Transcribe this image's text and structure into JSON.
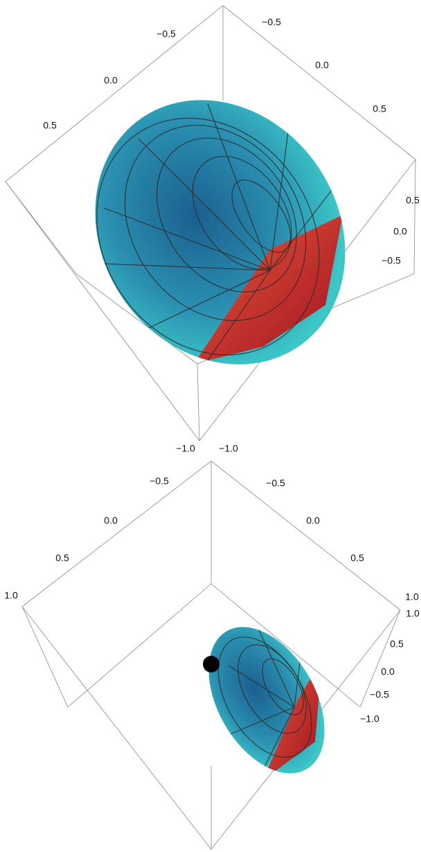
{
  "plots": [
    {
      "axes": {
        "left": {
          "ticks": [
            "−0.5",
            "0.0",
            "0.5"
          ]
        },
        "right": {
          "ticks": [
            "−0.5",
            "0.0",
            "0.5"
          ]
        },
        "vertical": {
          "ticks": [
            "0.5",
            "0.0",
            "−0.5"
          ]
        }
      }
    },
    {
      "axes": {
        "left": {
          "ticks": [
            "−1.0",
            "−0.5",
            "0.0",
            "0.5",
            "1.0"
          ]
        },
        "right": {
          "ticks": [
            "−1.0",
            "−0.5",
            "0.0",
            "0.5",
            "1.0"
          ]
        },
        "vertical": {
          "ticks": [
            "1.0",
            "0.5",
            "0.0",
            "−0.5",
            "−1.0"
          ]
        }
      }
    }
  ]
}
